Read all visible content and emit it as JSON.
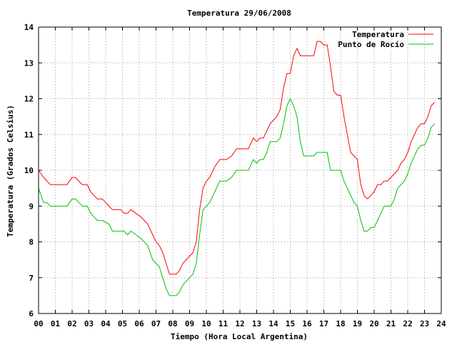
{
  "chart_data": {
    "type": "line",
    "title": "Temperatura 29/06/2008",
    "xlabel": "Tiempo (Hora Local Argentina)",
    "ylabel": "Temperatura (Grados Celsius)",
    "xlim": [
      0,
      24
    ],
    "ylim": [
      6,
      14
    ],
    "x_ticks": [
      "00",
      "01",
      "02",
      "03",
      "04",
      "05",
      "06",
      "07",
      "08",
      "09",
      "10",
      "11",
      "12",
      "13",
      "14",
      "15",
      "16",
      "17",
      "18",
      "19",
      "20",
      "21",
      "22",
      "23",
      "24"
    ],
    "y_ticks": [
      "6",
      "7",
      "8",
      "9",
      "10",
      "11",
      "12",
      "13",
      "14"
    ],
    "grid": true,
    "legend_position": "top-right",
    "series": [
      {
        "name": "Temperatura",
        "color": "#ff0000",
        "x": [
          0,
          0.15,
          0.3,
          0.5,
          0.7,
          1.0,
          1.3,
          1.7,
          2.0,
          2.2,
          2.4,
          2.6,
          2.9,
          3.1,
          3.3,
          3.5,
          3.8,
          4.2,
          4.4,
          4.6,
          4.9,
          5.1,
          5.3,
          5.5,
          5.8,
          6.1,
          6.5,
          6.8,
          7.0,
          7.2,
          7.4,
          7.6,
          7.8,
          8.0,
          8.2,
          8.4,
          8.6,
          8.8,
          9.0,
          9.2,
          9.4,
          9.6,
          9.8,
          10.0,
          10.2,
          10.5,
          10.8,
          11.0,
          11.2,
          11.5,
          11.8,
          12.0,
          12.2,
          12.5,
          12.8,
          13.0,
          13.2,
          13.4,
          13.6,
          13.8,
          14.0,
          14.2,
          14.4,
          14.6,
          14.8,
          15.0,
          15.2,
          15.4,
          15.6,
          15.8,
          16.0,
          16.2,
          16.4,
          16.6,
          16.8,
          17.0,
          17.2,
          17.4,
          17.6,
          17.8,
          18.0,
          18.2,
          18.4,
          18.6,
          18.8,
          19.0,
          19.2,
          19.4,
          19.6,
          19.8,
          20.0,
          20.2,
          20.4,
          20.6,
          20.8,
          21.0,
          21.2,
          21.4,
          21.6,
          21.8,
          22.0,
          22.2,
          22.4,
          22.6,
          22.8,
          23.0,
          23.2,
          23.4,
          23.6
        ],
        "values": [
          10.0,
          9.9,
          9.8,
          9.7,
          9.6,
          9.6,
          9.6,
          9.6,
          9.8,
          9.8,
          9.7,
          9.6,
          9.6,
          9.4,
          9.3,
          9.2,
          9.2,
          9.0,
          8.9,
          8.9,
          8.9,
          8.8,
          8.8,
          8.9,
          8.8,
          8.7,
          8.5,
          8.2,
          8.0,
          7.9,
          7.7,
          7.4,
          7.1,
          7.1,
          7.1,
          7.2,
          7.4,
          7.5,
          7.6,
          7.7,
          8.0,
          8.9,
          9.5,
          9.7,
          9.8,
          10.1,
          10.3,
          10.3,
          10.3,
          10.4,
          10.6,
          10.6,
          10.6,
          10.6,
          10.9,
          10.8,
          10.9,
          10.9,
          11.1,
          11.3,
          11.4,
          11.5,
          11.7,
          12.3,
          12.7,
          12.7,
          13.2,
          13.4,
          13.2,
          13.2,
          13.2,
          13.2,
          13.2,
          13.6,
          13.6,
          13.5,
          13.5,
          12.9,
          12.2,
          12.1,
          12.1,
          11.5,
          11.0,
          10.5,
          10.4,
          10.3,
          9.6,
          9.3,
          9.2,
          9.3,
          9.4,
          9.6,
          9.6,
          9.7,
          9.7,
          9.8,
          9.9,
          10.0,
          10.2,
          10.3,
          10.5,
          10.8,
          11.0,
          11.2,
          11.3,
          11.3,
          11.5,
          11.8,
          11.9
        ]
      },
      {
        "name": "Punto de Rocío",
        "color": "#00c000",
        "x": [
          0,
          0.15,
          0.3,
          0.5,
          0.7,
          1.0,
          1.3,
          1.7,
          2.0,
          2.2,
          2.4,
          2.6,
          2.9,
          3.1,
          3.3,
          3.5,
          3.8,
          4.2,
          4.4,
          4.6,
          4.9,
          5.1,
          5.3,
          5.5,
          5.8,
          6.1,
          6.5,
          6.8,
          7.0,
          7.2,
          7.4,
          7.6,
          7.8,
          8.0,
          8.2,
          8.4,
          8.6,
          8.8,
          9.0,
          9.2,
          9.4,
          9.6,
          9.8,
          10.0,
          10.2,
          10.5,
          10.8,
          11.0,
          11.2,
          11.5,
          11.8,
          12.0,
          12.2,
          12.5,
          12.8,
          13.0,
          13.2,
          13.4,
          13.6,
          13.8,
          14.0,
          14.2,
          14.4,
          14.6,
          14.8,
          15.0,
          15.2,
          15.4,
          15.6,
          15.8,
          16.0,
          16.2,
          16.4,
          16.6,
          16.8,
          17.0,
          17.2,
          17.4,
          17.6,
          17.8,
          18.0,
          18.2,
          18.4,
          18.6,
          18.8,
          19.0,
          19.2,
          19.4,
          19.6,
          19.8,
          20.0,
          20.2,
          20.4,
          20.6,
          20.8,
          21.0,
          21.2,
          21.4,
          21.6,
          21.8,
          22.0,
          22.2,
          22.4,
          22.6,
          22.8,
          23.0,
          23.2,
          23.4,
          23.6
        ],
        "values": [
          9.5,
          9.3,
          9.1,
          9.1,
          9.0,
          9.0,
          9.0,
          9.0,
          9.2,
          9.2,
          9.1,
          9.0,
          9.0,
          8.8,
          8.7,
          8.6,
          8.6,
          8.5,
          8.3,
          8.3,
          8.3,
          8.3,
          8.2,
          8.3,
          8.2,
          8.1,
          7.9,
          7.5,
          7.4,
          7.3,
          7.0,
          6.7,
          6.5,
          6.5,
          6.5,
          6.6,
          6.8,
          6.9,
          7.0,
          7.1,
          7.4,
          8.2,
          8.9,
          9.0,
          9.1,
          9.4,
          9.7,
          9.7,
          9.7,
          9.8,
          10.0,
          10.0,
          10.0,
          10.0,
          10.3,
          10.2,
          10.3,
          10.3,
          10.5,
          10.8,
          10.8,
          10.8,
          10.9,
          11.3,
          11.8,
          12.0,
          11.8,
          11.5,
          10.8,
          10.4,
          10.4,
          10.4,
          10.4,
          10.5,
          10.5,
          10.5,
          10.5,
          10.0,
          10.0,
          10.0,
          10.0,
          9.7,
          9.5,
          9.3,
          9.1,
          9.0,
          8.6,
          8.3,
          8.3,
          8.4,
          8.4,
          8.6,
          8.8,
          9.0,
          9.0,
          9.0,
          9.2,
          9.5,
          9.6,
          9.7,
          9.9,
          10.2,
          10.4,
          10.6,
          10.7,
          10.7,
          10.9,
          11.2,
          11.3
        ]
      }
    ]
  }
}
